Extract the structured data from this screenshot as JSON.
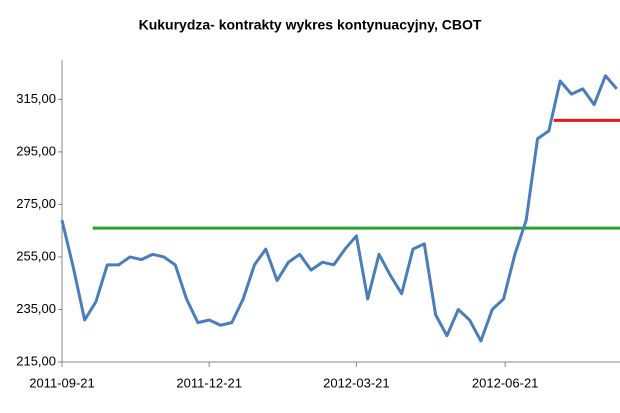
{
  "chart_data": {
    "type": "line",
    "title": "Kukurydza- kontrakty wykres kontynuacyjny, CBOT",
    "x": [
      "2011-09-21",
      "2011-09-28",
      "2011-10-05",
      "2011-10-12",
      "2011-10-19",
      "2011-10-26",
      "2011-11-02",
      "2011-11-09",
      "2011-11-16",
      "2011-11-23",
      "2011-11-30",
      "2011-12-07",
      "2011-12-14",
      "2011-12-21",
      "2011-12-28",
      "2012-01-04",
      "2012-01-11",
      "2012-01-18",
      "2012-01-25",
      "2012-02-01",
      "2012-02-08",
      "2012-02-15",
      "2012-02-22",
      "2012-02-29",
      "2012-03-07",
      "2012-03-14",
      "2012-03-21",
      "2012-03-28",
      "2012-04-04",
      "2012-04-11",
      "2012-04-18",
      "2012-04-25",
      "2012-05-02",
      "2012-05-09",
      "2012-05-16",
      "2012-05-23",
      "2012-05-30",
      "2012-06-06",
      "2012-06-13",
      "2012-06-20",
      "2012-06-27",
      "2012-07-04",
      "2012-07-11",
      "2012-07-18",
      "2012-07-25",
      "2012-08-01",
      "2012-08-08",
      "2012-08-15",
      "2012-08-22",
      "2012-08-29"
    ],
    "series": [
      {
        "color": "#4a7ebb",
        "values": [
          269,
          251,
          231,
          238,
          252,
          252,
          255,
          254,
          256,
          255,
          252,
          239,
          230,
          231,
          229,
          230,
          239,
          252,
          258,
          246,
          253,
          256,
          250,
          253,
          252,
          258,
          263,
          239,
          256,
          248,
          241,
          258,
          260,
          233,
          225,
          235,
          231,
          223,
          235,
          239,
          256,
          269,
          300,
          303,
          322,
          317,
          319,
          313,
          324,
          319
        ]
      }
    ],
    "reference_lines": [
      {
        "color": "#2ca02c",
        "y": 266,
        "x": [
          "2011-10-10",
          "2012-08-31"
        ]
      },
      {
        "color": "#e8141e",
        "y": 307,
        "x": [
          "2012-07-21",
          "2012-08-31"
        ]
      }
    ],
    "xlim": [
      "2011-09-21",
      "2012-08-31"
    ],
    "xticks": [
      "2011-09-21",
      "2011-12-21",
      "2012-03-21",
      "2012-06-21"
    ],
    "ylim": [
      215,
      330
    ],
    "yticks": [
      {
        "value": 215,
        "label": "215,00"
      },
      {
        "value": 235,
        "label": "235,00"
      },
      {
        "value": 255,
        "label": "255,00"
      },
      {
        "value": 275,
        "label": "275,00"
      },
      {
        "value": 295,
        "label": "295,00"
      },
      {
        "value": 315,
        "label": "315,00"
      }
    ]
  }
}
